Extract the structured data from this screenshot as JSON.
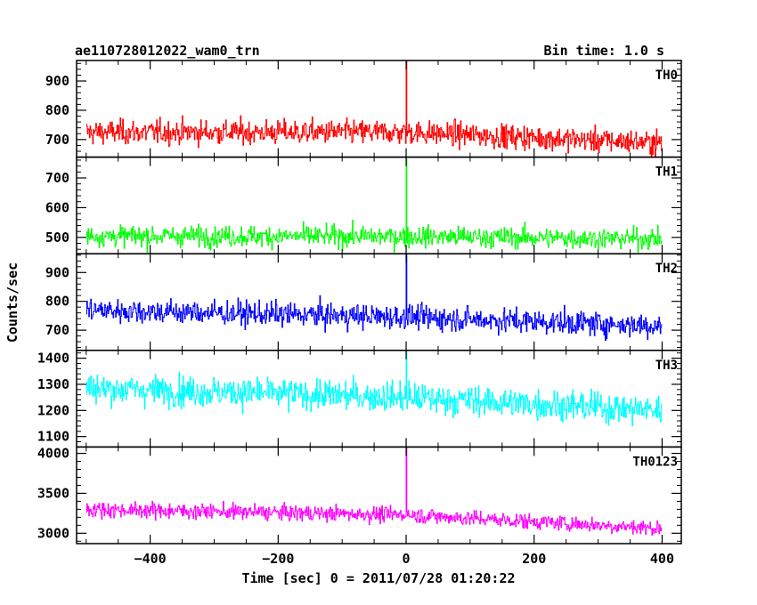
{
  "chart_data": {
    "type": "line",
    "title_left": "ae110728012022_wam0_trn",
    "title_right": "Bin time: 1.0 s",
    "xlabel": "Time [sec] 0 = 2011/07/28 01:20:22",
    "ylabel": "Counts/sec",
    "xlim": [
      -515,
      430
    ],
    "xticks": [
      -400,
      -200,
      0,
      200,
      400
    ],
    "x_start": -500,
    "x_end": 400,
    "bin_time": 1.0,
    "panels": [
      {
        "name": "TH0",
        "color": "#ff0000",
        "ylim": [
          640,
          970
        ],
        "yticks": [
          700,
          800,
          900
        ],
        "trend": [
          [
            -500,
            725
          ],
          [
            0,
            725
          ],
          [
            400,
            688
          ]
        ],
        "noise": 32,
        "peak": 970
      },
      {
        "name": "TH1",
        "color": "#00ff00",
        "ylim": [
          445,
          770
        ],
        "yticks": [
          500,
          600,
          700
        ],
        "trend": [
          [
            -500,
            505
          ],
          [
            0,
            503
          ],
          [
            400,
            495
          ]
        ],
        "noise": 27,
        "peak": 770
      },
      {
        "name": "TH2",
        "color": "#0000ff",
        "ylim": [
          630,
          965
        ],
        "yticks": [
          700,
          800,
          900
        ],
        "trend": [
          [
            -500,
            770
          ],
          [
            0,
            745
          ],
          [
            400,
            715
          ]
        ],
        "noise": 33,
        "peak": 965
      },
      {
        "name": "TH3",
        "color": "#00ffff",
        "ylim": [
          1060,
          1430
        ],
        "yticks": [
          1100,
          1200,
          1300,
          1400
        ],
        "trend": [
          [
            -500,
            1285
          ],
          [
            0,
            1250
          ],
          [
            400,
            1200
          ]
        ],
        "noise": 45,
        "peak": 1425
      },
      {
        "name": "TH0123",
        "color": "#ff00ff",
        "ylim": [
          2870,
          4080
        ],
        "yticks": [
          3000,
          3500,
          4000
        ],
        "trend": [
          [
            -500,
            3300
          ],
          [
            0,
            3230
          ],
          [
            400,
            3060
          ]
        ],
        "noise": 75,
        "peak": 4080
      }
    ]
  }
}
